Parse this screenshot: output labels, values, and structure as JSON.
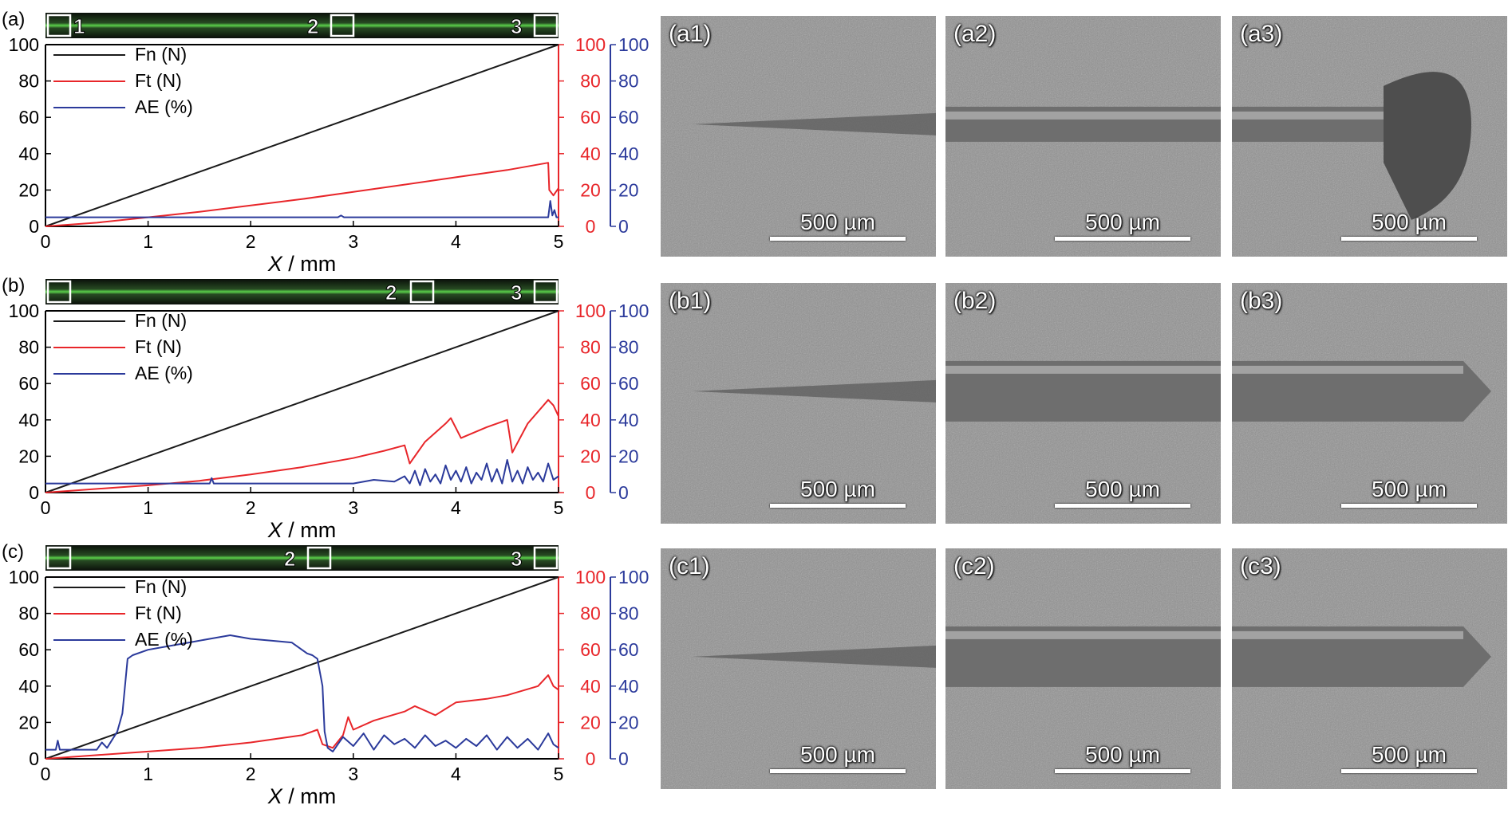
{
  "colors": {
    "fn": "#1a1a1a",
    "ft": "#e8262a",
    "ae": "#2b3a9b",
    "axis": "#000000"
  },
  "panels": [
    {
      "label": "(a)",
      "optical_markers": [
        "1",
        "2",
        "3"
      ],
      "chart_data": {
        "type": "line",
        "xlabel_italic": "X",
        "xlabel_rest": " / mm",
        "xlim": [
          0,
          5
        ],
        "xticks": [
          0,
          1,
          2,
          3,
          4,
          5
        ],
        "ylim": [
          0,
          100
        ],
        "yticks": [
          0,
          20,
          40,
          60,
          80,
          100
        ],
        "right_axes": [
          {
            "color": "#e8262a",
            "ylim": [
              0,
              100
            ]
          },
          {
            "color": "#2b3a9b",
            "ylim": [
              0,
              100
            ]
          }
        ],
        "legend": "top-left",
        "series": [
          {
            "name": "Fn (N)",
            "color": "#1a1a1a",
            "x": [
              0,
              5
            ],
            "y": [
              0,
              100
            ]
          },
          {
            "name": "Ft (N)",
            "color": "#e8262a",
            "x": [
              0,
              0.5,
              1,
              1.5,
              2,
              2.5,
              3,
              3.5,
              4,
              4.5,
              4.9,
              4.91,
              4.95,
              5
            ],
            "y": [
              0,
              2,
              5,
              8,
              11.5,
              15,
              19,
              23,
              27,
              31,
              35,
              20,
              17,
              21
            ]
          },
          {
            "name": "AE (%)",
            "color": "#2b3a9b",
            "x": [
              0,
              2.85,
              2.88,
              2.91,
              4.9,
              4.92,
              4.94,
              4.96,
              4.98,
              5
            ],
            "y": [
              5,
              5,
              6,
              5,
              5,
              14,
              6,
              9,
              5,
              5
            ]
          }
        ]
      },
      "sem_images": [
        {
          "label": "(a1)",
          "scale": "500 µm"
        },
        {
          "label": "(a2)",
          "scale": "500 µm"
        },
        {
          "label": "(a3)",
          "scale": "500 µm"
        }
      ]
    },
    {
      "label": "(b)",
      "optical_markers": [
        "2",
        "3"
      ],
      "chart_data": {
        "type": "line",
        "xlabel_italic": "X",
        "xlabel_rest": " / mm",
        "xlim": [
          0,
          5
        ],
        "xticks": [
          0,
          1,
          2,
          3,
          4,
          5
        ],
        "ylim": [
          0,
          100
        ],
        "yticks": [
          0,
          20,
          40,
          60,
          80,
          100
        ],
        "right_axes": [
          {
            "color": "#e8262a",
            "ylim": [
              0,
              100
            ]
          },
          {
            "color": "#2b3a9b",
            "ylim": [
              0,
              100
            ]
          }
        ],
        "legend": "top-left",
        "series": [
          {
            "name": "Fn (N)",
            "color": "#1a1a1a",
            "x": [
              0,
              5
            ],
            "y": [
              0,
              100
            ]
          },
          {
            "name": "Ft (N)",
            "color": "#e8262a",
            "x": [
              0,
              0.5,
              1,
              1.5,
              2,
              2.5,
              3,
              3.3,
              3.5,
              3.55,
              3.7,
              3.9,
              3.95,
              4.05,
              4.3,
              4.5,
              4.55,
              4.7,
              4.9,
              4.95,
              5
            ],
            "y": [
              0,
              2,
              4,
              6.5,
              10,
              14,
              19,
              23,
              26,
              16,
              28,
              38,
              41,
              30,
              36,
              40,
              22,
              38,
              51,
              48,
              42
            ]
          },
          {
            "name": "AE (%)",
            "color": "#2b3a9b",
            "x": [
              0,
              1.6,
              1.62,
              1.64,
              3.0,
              3.2,
              3.4,
              3.5,
              3.55,
              3.6,
              3.65,
              3.7,
              3.75,
              3.8,
              3.85,
              3.9,
              3.95,
              4.0,
              4.05,
              4.1,
              4.15,
              4.2,
              4.25,
              4.3,
              4.35,
              4.4,
              4.45,
              4.5,
              4.55,
              4.6,
              4.65,
              4.7,
              4.75,
              4.8,
              4.85,
              4.9,
              4.95,
              5
            ],
            "y": [
              5,
              5,
              8,
              5,
              5,
              7,
              6,
              9,
              5,
              12,
              4,
              13,
              6,
              10,
              5,
              15,
              7,
              12,
              6,
              14,
              5,
              11,
              7,
              16,
              6,
              13,
              5,
              18,
              6,
              12,
              5,
              14,
              7,
              11,
              6,
              16,
              7,
              9
            ]
          }
        ]
      },
      "sem_images": [
        {
          "label": "(b1)",
          "scale": "500 µm"
        },
        {
          "label": "(b2)",
          "scale": "500 µm"
        },
        {
          "label": "(b3)",
          "scale": "500 µm"
        }
      ]
    },
    {
      "label": "(c)",
      "optical_markers": [
        "2",
        "3"
      ],
      "chart_data": {
        "type": "line",
        "xlabel_italic": "X",
        "xlabel_rest": " / mm",
        "xlim": [
          0,
          5
        ],
        "xticks": [
          0,
          1,
          2,
          3,
          4,
          5
        ],
        "ylim": [
          0,
          100
        ],
        "yticks": [
          0,
          20,
          40,
          60,
          80,
          100
        ],
        "right_axes": [
          {
            "color": "#e8262a",
            "ylim": [
              0,
              100
            ]
          },
          {
            "color": "#2b3a9b",
            "ylim": [
              0,
              100
            ]
          }
        ],
        "legend": "top-left",
        "series": [
          {
            "name": "Fn (N)",
            "color": "#1a1a1a",
            "x": [
              0,
              5
            ],
            "y": [
              0,
              100
            ]
          },
          {
            "name": "Ft (N)",
            "color": "#e8262a",
            "x": [
              0,
              0.5,
              1,
              1.5,
              2,
              2.5,
              2.65,
              2.7,
              2.8,
              2.9,
              2.95,
              3.0,
              3.2,
              3.5,
              3.6,
              3.8,
              4.0,
              4.3,
              4.5,
              4.8,
              4.9,
              4.95,
              5
            ],
            "y": [
              0,
              2,
              4,
              6,
              9,
              13,
              16,
              8,
              6,
              13,
              23,
              16,
              21,
              26,
              29,
              24,
              31,
              33,
              35,
              40,
              46,
              40,
              38
            ]
          },
          {
            "name": "AE (%)",
            "color": "#2b3a9b",
            "x": [
              0,
              0.1,
              0.12,
              0.14,
              0.5,
              0.55,
              0.6,
              0.7,
              0.75,
              0.8,
              0.85,
              1.0,
              1.2,
              1.4,
              1.6,
              1.8,
              2.0,
              2.2,
              2.4,
              2.55,
              2.6,
              2.65,
              2.7,
              2.72,
              2.75,
              2.8,
              2.9,
              3.0,
              3.1,
              3.2,
              3.3,
              3.4,
              3.5,
              3.6,
              3.7,
              3.8,
              3.9,
              4.0,
              4.1,
              4.2,
              4.3,
              4.4,
              4.5,
              4.6,
              4.7,
              4.8,
              4.9,
              4.95,
              5
            ],
            "y": [
              5,
              5,
              10,
              5,
              5,
              9,
              6,
              15,
              25,
              55,
              57,
              60,
              62,
              64,
              66,
              68,
              66,
              65,
              64,
              58,
              57,
              55,
              40,
              15,
              6,
              4,
              12,
              7,
              14,
              5,
              13,
              8,
              11,
              6,
              13,
              7,
              10,
              6,
              11,
              7,
              13,
              5,
              12,
              6,
              11,
              5,
              14,
              8,
              6
            ]
          }
        ]
      },
      "sem_images": [
        {
          "label": "(c1)",
          "scale": "500 µm"
        },
        {
          "label": "(c2)",
          "scale": "500 µm"
        },
        {
          "label": "(c3)",
          "scale": "500 µm"
        }
      ]
    }
  ]
}
